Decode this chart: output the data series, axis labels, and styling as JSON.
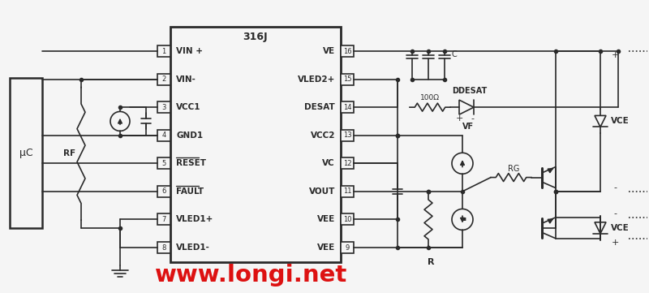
{
  "title": "316J",
  "website": "www.longi.net",
  "bg_color": "#f5f5f5",
  "line_color": "#2a2a2a",
  "text_color": "#2a2a2a",
  "red_color": "#dd1111",
  "left_labels": [
    "VIN +",
    "VIN-",
    "VCC1",
    "GND1",
    "RESET",
    "FAULT",
    "VLED1+",
    "VLED1-"
  ],
  "left_nums": [
    "1",
    "2",
    "3",
    "4",
    "5",
    "6",
    "7",
    "8"
  ],
  "left_overline": [
    false,
    false,
    false,
    false,
    true,
    true,
    false,
    false
  ],
  "right_labels": [
    "VE",
    "VLED2+",
    "DESAT",
    "VCC2",
    "VC",
    "VOUT",
    "VEE",
    "VEE"
  ],
  "right_nums": [
    "16",
    "15",
    "14",
    "13",
    "12",
    "11",
    "10",
    "9"
  ]
}
